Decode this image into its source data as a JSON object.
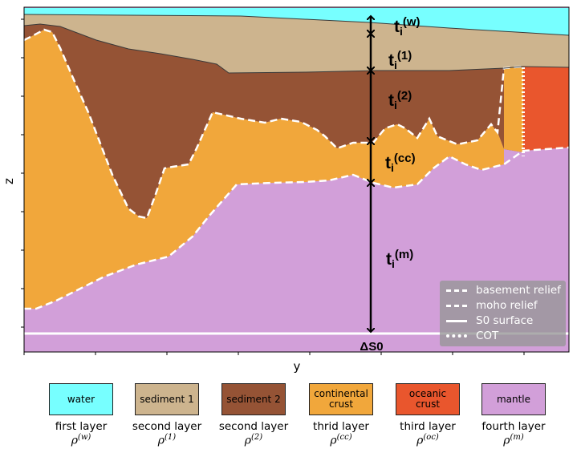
{
  "axes": {
    "xlabel": "y",
    "ylabel": "z"
  },
  "thickness_labels": {
    "water": {
      "base": "t",
      "sub": "i",
      "sup": "(w)"
    },
    "sediment1": {
      "base": "t",
      "sub": "i",
      "sup": "(1)"
    },
    "sediment2": {
      "base": "t",
      "sub": "i",
      "sup": "(2)"
    },
    "crust": {
      "base": "t",
      "sub": "i",
      "sup": "(cc)"
    },
    "mantle": {
      "base": "t",
      "sub": "i",
      "sup": "(m)"
    }
  },
  "s0_label": "ΔS0",
  "legend": [
    {
      "label": "basement relief",
      "style": "dashed"
    },
    {
      "label": "moho relief",
      "style": "dashed"
    },
    {
      "label": "S0 surface",
      "style": "solid"
    },
    {
      "label": "COT",
      "style": "dotted"
    }
  ],
  "colors": {
    "water": "#77ffff",
    "sediment1": "#cdb48e",
    "sediment2": "#955335",
    "crust": "#f1a73b",
    "oceanic": "#e9562d",
    "mantle": "#d29fd9"
  },
  "swatches": [
    {
      "name": "water",
      "label_lines": [
        "water"
      ],
      "layer": "first layer",
      "rho_sup": "(w)"
    },
    {
      "name": "sediment1",
      "label_lines": [
        "sediment 1"
      ],
      "layer": "second layer",
      "rho_sup": "(1)"
    },
    {
      "name": "sediment2",
      "label_lines": [
        "sediment 2"
      ],
      "layer": "second layer",
      "rho_sup": "(2)"
    },
    {
      "name": "crust",
      "label_lines": [
        "continental",
        "crust"
      ],
      "layer": "thrid layer",
      "rho_sup": "(cc)"
    },
    {
      "name": "oceanic",
      "label_lines": [
        "oceanic",
        "crust"
      ],
      "layer": "third layer",
      "rho_sup": "(oc)"
    },
    {
      "name": "mantle",
      "label_lines": [
        "mantle"
      ],
      "layer": "fourth layer",
      "rho_sup": "(m)"
    }
  ],
  "rho_symbol": "ρ"
}
